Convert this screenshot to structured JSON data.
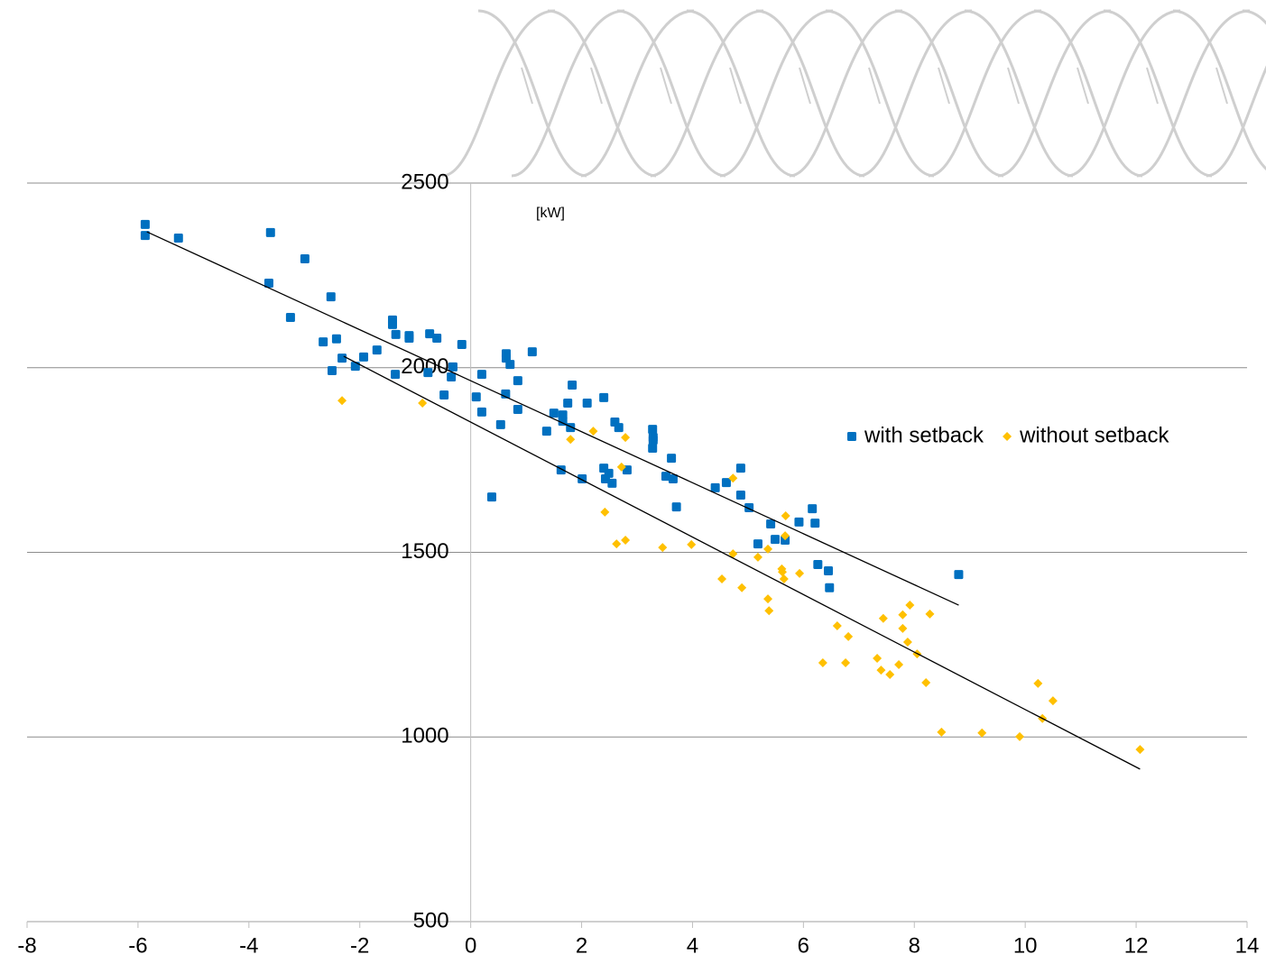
{
  "chart_data": {
    "type": "scatter",
    "annotations": [
      "[kW]"
    ],
    "xlim": [
      -8,
      14
    ],
    "xticks": [
      -8,
      -6,
      -4,
      -2,
      0,
      2,
      4,
      6,
      8,
      10,
      12,
      14
    ],
    "ylim": [
      500,
      2500
    ],
    "yticks": [
      500,
      1000,
      1500,
      2000,
      2500
    ],
    "grid": true,
    "legend": "right",
    "series": [
      {
        "name": "with setback",
        "color": "#0070c0",
        "marker": "square",
        "x": [
          -5.87,
          -5.87,
          -5.27,
          -3.61,
          -3.64,
          -2.99,
          -2.52,
          -3.25,
          -2.66,
          -2.42,
          -2.5,
          -2.32,
          -2.08,
          -1.93,
          -1.69,
          -1.41,
          -1.41,
          -1.35,
          -1.36,
          -1.11,
          -1.11,
          -0.74,
          -0.61,
          -0.77,
          -0.48,
          -0.35,
          -0.32,
          -0.16,
          0.1,
          0.2,
          0.2,
          0.38,
          0.54,
          0.64,
          0.64,
          0.71,
          0.63,
          0.85,
          0.85,
          1.11,
          1.37,
          1.5,
          1.66,
          1.66,
          1.63,
          1.75,
          1.8,
          1.83,
          2.01,
          2.1,
          2.4,
          2.4,
          2.43,
          2.49,
          2.55,
          2.6,
          2.67,
          2.82,
          3.28,
          3.28,
          3.29,
          3.29,
          3.52,
          3.62,
          3.65,
          3.71,
          4.41,
          4.61,
          4.87,
          4.87,
          5.02,
          5.18,
          5.41,
          5.49,
          5.67,
          5.92,
          6.16,
          6.21,
          6.26,
          6.45,
          6.47,
          8.8
        ],
        "values": [
          2388,
          2358,
          2351,
          2366,
          2229,
          2295,
          2192,
          2136,
          2070,
          2078,
          1992,
          2026,
          2004,
          2029,
          2048,
          2129,
          2117,
          2090,
          1982,
          2087,
          2080,
          2092,
          2080,
          1987,
          1926,
          1975,
          2002,
          2063,
          1921,
          1880,
          1982,
          1650,
          1846,
          2038,
          2026,
          2009,
          1929,
          1965,
          1887,
          2043,
          1828,
          1877,
          1872,
          1855,
          1723,
          1904,
          1838,
          1953,
          1699,
          1904,
          1919,
          1728,
          1699,
          1714,
          1687,
          1853,
          1838,
          1723,
          1833,
          1782,
          1811,
          1804,
          1706,
          1755,
          1699,
          1623,
          1675,
          1689,
          1728,
          1655,
          1621,
          1523,
          1577,
          1535,
          1533,
          1582,
          1618,
          1579,
          1467,
          1450,
          1404,
          1440
        ]
      },
      {
        "name": "without setback",
        "color": "#ffc000",
        "marker": "diamond",
        "x": [
          -2.32,
          -0.87,
          1.8,
          2.21,
          2.79,
          2.72,
          2.42,
          2.63,
          2.79,
          3.46,
          3.98,
          4.53,
          4.73,
          4.73,
          4.89,
          5.18,
          5.36,
          5.36,
          5.38,
          5.61,
          5.62,
          5.65,
          5.67,
          5.68,
          5.93,
          6.35,
          6.61,
          6.81,
          6.76,
          7.33,
          7.4,
          7.44,
          7.56,
          7.72,
          7.79,
          7.79,
          7.88,
          7.92,
          8.05,
          8.21,
          8.28,
          8.49,
          9.22,
          9.9,
          10.23,
          10.31,
          10.5,
          12.07
        ],
        "values": [
          1911,
          1904,
          1806,
          1828,
          1811,
          1731,
          1609,
          1523,
          1533,
          1513,
          1521,
          1428,
          1496,
          1701,
          1404,
          1487,
          1509,
          1374,
          1342,
          1455,
          1447,
          1428,
          1545,
          1599,
          1443,
          1201,
          1301,
          1272,
          1201,
          1213,
          1181,
          1321,
          1169,
          1196,
          1331,
          1294,
          1257,
          1357,
          1225,
          1147,
          1333,
          1013,
          1011,
          1001,
          1145,
          1050,
          1098,
          966
        ]
      }
    ],
    "trendlines": [
      {
        "color": "#000000",
        "x": [
          -5.84,
          8.8
        ],
        "values": [
          2368,
          1357
        ]
      },
      {
        "color": "#000000",
        "x": [
          -2.29,
          12.07
        ],
        "values": [
          2031,
          913
        ]
      }
    ]
  }
}
